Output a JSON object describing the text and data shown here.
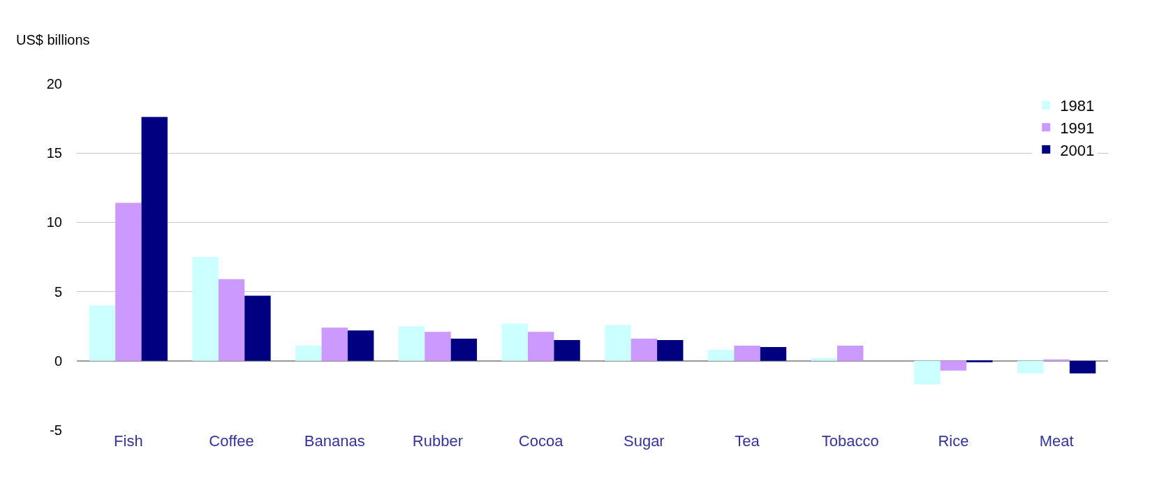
{
  "chart_data": {
    "type": "bar",
    "ylabel": "US$ billions",
    "categories": [
      "Fish",
      "Coffee",
      "Bananas",
      "Rubber",
      "Cocoa",
      "Sugar",
      "Tea",
      "Tobacco",
      "Rice",
      "Meat"
    ],
    "series": [
      {
        "name": "1981",
        "color": "#ccffff",
        "values": [
          4.0,
          7.5,
          1.1,
          2.5,
          2.7,
          2.6,
          0.8,
          0.2,
          -1.7,
          -0.9
        ]
      },
      {
        "name": "1991",
        "color": "#cc99ff",
        "values": [
          11.4,
          5.9,
          2.4,
          2.1,
          2.1,
          1.6,
          1.1,
          1.1,
          -0.7,
          0.1
        ]
      },
      {
        "name": "2001",
        "color": "#000080",
        "values": [
          17.6,
          4.7,
          2.2,
          1.6,
          1.5,
          1.5,
          1.0,
          null,
          -0.1,
          -0.9
        ]
      }
    ],
    "ylim": [
      -5,
      20
    ],
    "yticks": [
      -5,
      0,
      5,
      10,
      15,
      20
    ],
    "grid": "y",
    "legend": "top right"
  }
}
